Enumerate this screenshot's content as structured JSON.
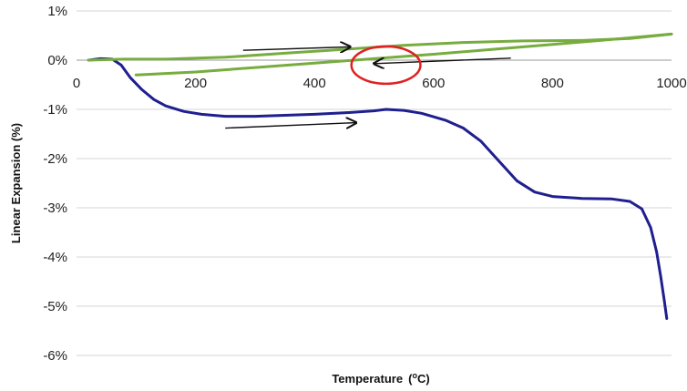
{
  "chart_data": {
    "type": "line",
    "title": "",
    "xlabel": "Temperature",
    "xlabel_unit": "(",
    "xlabel_unit_sup": "o",
    "xlabel_unit_end": "C)",
    "ylabel": "Linear Expansion (%)",
    "xlim": [
      0,
      1000
    ],
    "ylim": [
      -6,
      1
    ],
    "x_ticks": [
      0,
      200,
      400,
      600,
      800,
      1000
    ],
    "x_tick_labels": [
      "0",
      "200",
      "400",
      "600",
      "800",
      "1000"
    ],
    "y_ticks": [
      1,
      0,
      -1,
      -2,
      -3,
      -4,
      -5,
      -6
    ],
    "y_tick_labels": [
      "1%",
      "0%",
      "-1%",
      "-2%",
      "-3%",
      "-4%",
      "-5%",
      "-6%"
    ],
    "grid": "horizontal",
    "legend": "none",
    "series": [
      {
        "color": "#1f1f8f",
        "points": [
          [
            20,
            0.0
          ],
          [
            40,
            0.03
          ],
          [
            60,
            0.02
          ],
          [
            75,
            -0.1
          ],
          [
            90,
            -0.35
          ],
          [
            110,
            -0.6
          ],
          [
            130,
            -0.8
          ],
          [
            150,
            -0.93
          ],
          [
            180,
            -1.04
          ],
          [
            210,
            -1.1
          ],
          [
            250,
            -1.14
          ],
          [
            300,
            -1.14
          ],
          [
            350,
            -1.12
          ],
          [
            400,
            -1.1
          ],
          [
            450,
            -1.07
          ],
          [
            500,
            -1.03
          ],
          [
            520,
            -1.0
          ],
          [
            550,
            -1.02
          ],
          [
            580,
            -1.08
          ],
          [
            620,
            -1.22
          ],
          [
            650,
            -1.38
          ],
          [
            680,
            -1.65
          ],
          [
            710,
            -2.05
          ],
          [
            740,
            -2.45
          ],
          [
            770,
            -2.68
          ],
          [
            800,
            -2.77
          ],
          [
            850,
            -2.81
          ],
          [
            900,
            -2.82
          ],
          [
            930,
            -2.87
          ],
          [
            950,
            -3.02
          ],
          [
            965,
            -3.4
          ],
          [
            975,
            -3.9
          ],
          [
            982,
            -4.4
          ],
          [
            988,
            -4.9
          ],
          [
            992,
            -5.25
          ]
        ]
      },
      {
        "color": "#77ac3f",
        "points": [
          [
            20,
            0.0
          ],
          [
            80,
            0.02
          ],
          [
            150,
            0.02
          ],
          [
            250,
            0.06
          ],
          [
            350,
            0.14
          ],
          [
            450,
            0.22
          ],
          [
            550,
            0.3
          ],
          [
            650,
            0.36
          ],
          [
            750,
            0.39
          ],
          [
            850,
            0.4
          ],
          [
            930,
            0.44
          ],
          [
            1000,
            0.53
          ]
        ]
      },
      {
        "color": "#77ac3f",
        "points": [
          [
            100,
            -0.3
          ],
          [
            200,
            -0.24
          ],
          [
            300,
            -0.15
          ],
          [
            400,
            -0.06
          ],
          [
            500,
            0.03
          ],
          [
            600,
            0.12
          ],
          [
            700,
            0.22
          ],
          [
            800,
            0.32
          ],
          [
            900,
            0.42
          ],
          [
            1000,
            0.53
          ]
        ]
      }
    ],
    "annotations": [
      {
        "type": "arrow",
        "from": [
          280,
          0.2
        ],
        "to": [
          460,
          0.27
        ]
      },
      {
        "type": "arrow",
        "from": [
          730,
          0.04
        ],
        "to": [
          500,
          -0.07
        ]
      },
      {
        "type": "arrow",
        "from": [
          250,
          -1.38
        ],
        "to": [
          470,
          -1.27
        ]
      },
      {
        "type": "ellipse",
        "cx": 520,
        "cy": -0.1,
        "rx": 58,
        "ry": 0.38,
        "color": "#dd2222"
      }
    ]
  }
}
